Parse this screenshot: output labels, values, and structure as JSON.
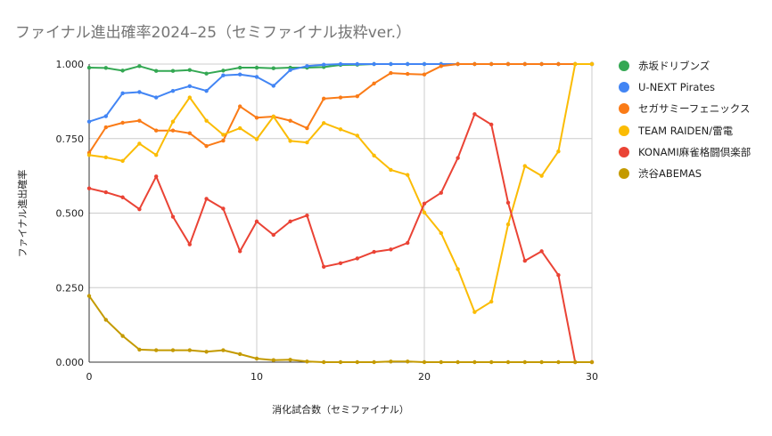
{
  "chart_data": {
    "type": "line",
    "title": "ファイナル進出確率2024–25（セミファイナル抜粋ver.）",
    "xlabel": "消化試合数（セミファイナル）",
    "ylabel": "ファイナル進出確率",
    "xlim": [
      0,
      30
    ],
    "ylim": [
      0,
      1
    ],
    "x_ticks": [
      "0",
      "10",
      "20",
      "30"
    ],
    "y_ticks": [
      "0.000",
      "0.250",
      "0.500",
      "0.750",
      "1.000"
    ],
    "grid": true,
    "legend_position": "right",
    "x": [
      0,
      1,
      2,
      3,
      4,
      5,
      6,
      7,
      8,
      9,
      10,
      11,
      12,
      13,
      14,
      15,
      16,
      17,
      18,
      19,
      20,
      21,
      22,
      23,
      24,
      25,
      26,
      27,
      28,
      29,
      30
    ],
    "series": [
      {
        "name": "赤坂ドリブンズ",
        "color": "#34a853",
        "values": [
          0.988,
          0.987,
          0.978,
          0.993,
          0.977,
          0.977,
          0.98,
          0.968,
          0.978,
          0.988,
          0.988,
          0.986,
          0.988,
          0.988,
          0.99,
          0.997,
          0.998,
          1,
          1,
          1,
          1,
          1,
          1,
          1,
          1,
          1,
          1,
          1,
          1,
          1,
          1
        ]
      },
      {
        "name": "U-NEXT Pirates",
        "color": "#4285f4",
        "values": [
          0.807,
          0.825,
          0.902,
          0.906,
          0.888,
          0.91,
          0.926,
          0.91,
          0.962,
          0.965,
          0.957,
          0.927,
          0.98,
          0.993,
          0.998,
          1,
          1,
          1,
          1,
          1,
          1,
          1,
          1,
          1,
          1,
          1,
          1,
          1,
          1,
          1,
          1
        ]
      },
      {
        "name": "セガサミーフェニックス",
        "color": "#fa7b17",
        "values": [
          0.702,
          0.788,
          0.803,
          0.81,
          0.777,
          0.777,
          0.768,
          0.725,
          0.743,
          0.858,
          0.82,
          0.824,
          0.81,
          0.785,
          0.884,
          0.888,
          0.892,
          0.935,
          0.97,
          0.967,
          0.965,
          0.993,
          1,
          1,
          1,
          1,
          1,
          1,
          1,
          1,
          1
        ]
      },
      {
        "name": "TEAM RAIDEN/雷電",
        "color": "#fbbc04",
        "values": [
          0.695,
          0.687,
          0.675,
          0.733,
          0.695,
          0.807,
          0.888,
          0.81,
          0.763,
          0.785,
          0.748,
          0.824,
          0.742,
          0.737,
          0.802,
          0.781,
          0.76,
          0.693,
          0.645,
          0.628,
          0.502,
          0.433,
          0.312,
          0.168,
          0.203,
          0.462,
          0.658,
          0.625,
          0.707,
          1,
          1
        ]
      },
      {
        "name": "KONAMI麻雀格闘倶楽部",
        "color": "#ea4335",
        "values": [
          0.583,
          0.57,
          0.553,
          0.513,
          0.623,
          0.488,
          0.395,
          0.548,
          0.515,
          0.372,
          0.472,
          0.427,
          0.472,
          0.492,
          0.32,
          0.332,
          0.348,
          0.37,
          0.378,
          0.4,
          0.532,
          0.568,
          0.685,
          0.832,
          0.797,
          0.535,
          0.34,
          0.372,
          0.292,
          0,
          0
        ]
      },
      {
        "name": "渋谷ABEMAS",
        "color": "#c49a00",
        "values": [
          0.222,
          0.142,
          0.088,
          0.042,
          0.04,
          0.04,
          0.04,
          0.035,
          0.04,
          0.027,
          0.012,
          0.007,
          0.008,
          0.002,
          0,
          0,
          0,
          0,
          0.002,
          0.002,
          0,
          0,
          0,
          0,
          0,
          0,
          0,
          0,
          0,
          0,
          0
        ]
      }
    ]
  }
}
